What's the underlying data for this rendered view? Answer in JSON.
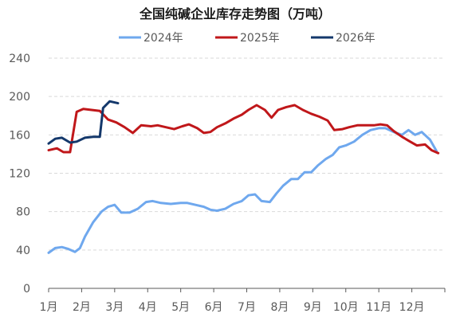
{
  "chart_data": {
    "type": "line",
    "title": "全国纯碱企业库存走势图（万吨）",
    "xlabel": "",
    "ylabel": "",
    "ylim": [
      0,
      240
    ],
    "yticks": [
      0,
      40,
      80,
      120,
      160,
      200,
      240
    ],
    "x_domain": [
      1,
      13
    ],
    "xticks": [
      {
        "label": "1月",
        "pos": 1
      },
      {
        "label": "2月",
        "pos": 2
      },
      {
        "label": "3月",
        "pos": 3
      },
      {
        "label": "4月",
        "pos": 4
      },
      {
        "label": "5月",
        "pos": 5
      },
      {
        "label": "6月",
        "pos": 6
      },
      {
        "label": "7月",
        "pos": 7
      },
      {
        "label": "8月",
        "pos": 8
      },
      {
        "label": "9月",
        "pos": 9
      },
      {
        "label": "10月",
        "pos": 10
      },
      {
        "label": "11月",
        "pos": 11
      },
      {
        "label": "12月",
        "pos": 12
      }
    ],
    "grid": "horizontal",
    "legend": "top",
    "series": [
      {
        "name": "2024年",
        "color": "#6fa8ee",
        "points": [
          [
            1.0,
            37
          ],
          [
            1.2,
            42
          ],
          [
            1.4,
            43
          ],
          [
            1.6,
            41
          ],
          [
            1.8,
            38
          ],
          [
            1.95,
            42
          ],
          [
            2.1,
            54
          ],
          [
            2.35,
            69
          ],
          [
            2.6,
            80
          ],
          [
            2.8,
            85
          ],
          [
            3.0,
            87
          ],
          [
            3.2,
            79
          ],
          [
            3.45,
            79
          ],
          [
            3.7,
            83
          ],
          [
            3.95,
            90
          ],
          [
            4.15,
            91
          ],
          [
            4.4,
            89
          ],
          [
            4.7,
            88
          ],
          [
            5.0,
            89
          ],
          [
            5.2,
            89
          ],
          [
            5.45,
            87
          ],
          [
            5.7,
            85
          ],
          [
            5.9,
            82
          ],
          [
            6.1,
            81
          ],
          [
            6.35,
            83
          ],
          [
            6.6,
            88
          ],
          [
            6.85,
            91
          ],
          [
            7.05,
            97
          ],
          [
            7.25,
            98
          ],
          [
            7.45,
            91
          ],
          [
            7.7,
            90
          ],
          [
            7.9,
            99
          ],
          [
            8.1,
            107
          ],
          [
            8.35,
            114
          ],
          [
            8.55,
            114
          ],
          [
            8.75,
            121
          ],
          [
            8.95,
            121
          ],
          [
            9.15,
            128
          ],
          [
            9.4,
            135
          ],
          [
            9.6,
            139
          ],
          [
            9.8,
            147
          ],
          [
            10.0,
            149
          ],
          [
            10.25,
            153
          ],
          [
            10.5,
            160
          ],
          [
            10.75,
            165
          ],
          [
            11.0,
            167
          ],
          [
            11.2,
            167
          ],
          [
            11.45,
            163
          ],
          [
            11.7,
            160
          ],
          [
            11.9,
            165
          ],
          [
            12.1,
            160
          ],
          [
            12.3,
            163
          ],
          [
            12.55,
            155
          ],
          [
            12.75,
            143
          ]
        ]
      },
      {
        "name": "2025年",
        "color": "#c0171a",
        "points": [
          [
            1.0,
            144
          ],
          [
            1.25,
            146
          ],
          [
            1.45,
            142
          ],
          [
            1.65,
            142
          ],
          [
            1.85,
            184
          ],
          [
            2.05,
            187
          ],
          [
            2.3,
            186
          ],
          [
            2.55,
            185
          ],
          [
            2.8,
            176
          ],
          [
            3.05,
            173
          ],
          [
            3.3,
            168
          ],
          [
            3.55,
            162
          ],
          [
            3.8,
            170
          ],
          [
            4.1,
            169
          ],
          [
            4.3,
            170
          ],
          [
            4.55,
            168
          ],
          [
            4.8,
            166
          ],
          [
            5.05,
            169
          ],
          [
            5.25,
            171
          ],
          [
            5.5,
            167
          ],
          [
            5.7,
            162
          ],
          [
            5.9,
            163
          ],
          [
            6.1,
            168
          ],
          [
            6.35,
            172
          ],
          [
            6.6,
            177
          ],
          [
            6.85,
            181
          ],
          [
            7.05,
            186
          ],
          [
            7.3,
            191
          ],
          [
            7.55,
            186
          ],
          [
            7.75,
            178
          ],
          [
            7.95,
            186
          ],
          [
            8.2,
            189
          ],
          [
            8.45,
            191
          ],
          [
            8.7,
            186
          ],
          [
            8.95,
            182
          ],
          [
            9.2,
            179
          ],
          [
            9.45,
            175
          ],
          [
            9.65,
            165
          ],
          [
            9.9,
            166
          ],
          [
            10.1,
            168
          ],
          [
            10.35,
            170
          ],
          [
            10.6,
            170
          ],
          [
            10.85,
            170
          ],
          [
            11.05,
            171
          ],
          [
            11.25,
            170
          ],
          [
            11.45,
            164
          ],
          [
            11.7,
            158
          ],
          [
            11.95,
            153
          ],
          [
            12.15,
            149
          ],
          [
            12.4,
            150
          ],
          [
            12.6,
            144
          ],
          [
            12.8,
            141
          ]
        ]
      },
      {
        "name": "2026年",
        "color": "#14386b",
        "points": [
          [
            1.0,
            151
          ],
          [
            1.2,
            156
          ],
          [
            1.4,
            157
          ],
          [
            1.65,
            152
          ],
          [
            1.85,
            153
          ],
          [
            2.1,
            157
          ],
          [
            2.35,
            158
          ],
          [
            2.55,
            158
          ],
          [
            2.65,
            188
          ],
          [
            2.85,
            195
          ],
          [
            3.1,
            193
          ]
        ]
      }
    ]
  }
}
